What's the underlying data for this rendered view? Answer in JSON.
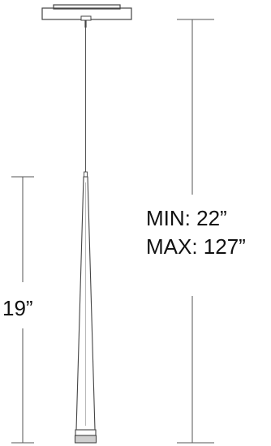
{
  "dimensions": {
    "overall_min": "MIN: 22”",
    "overall_max": "MAX: 127”",
    "shade_height": "19”"
  },
  "colors": {
    "line": "#444444",
    "fixture_fill": "#ffffff",
    "base_fill": "#cfcfcf",
    "text": "#111111"
  }
}
